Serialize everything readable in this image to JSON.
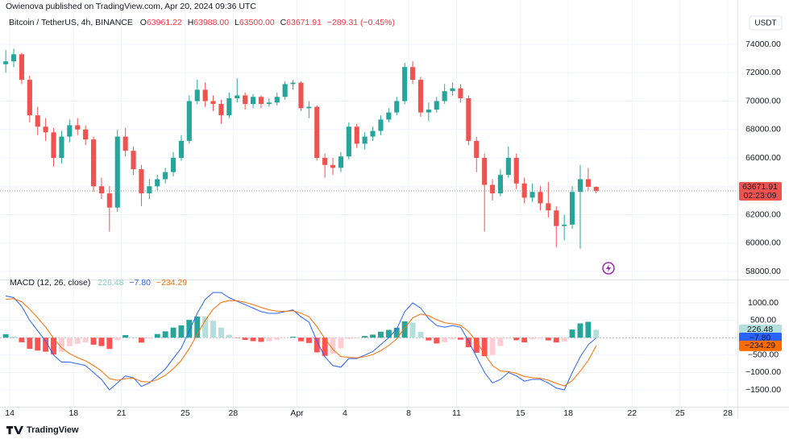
{
  "header": {
    "published": "Owienova published on TradingView.com, Apr 20, 2024 09:36 UTC",
    "symbol": "Bitcoin / TetherUS, 4h, BINANCE",
    "ohlc": [
      {
        "label": "O",
        "value": "63961.22"
      },
      {
        "label": "H",
        "value": "63988.00"
      },
      {
        "label": "L",
        "value": "63500.00"
      },
      {
        "label": "C",
        "value": "63671.91"
      }
    ],
    "change": "−289.31 (−0.45%)",
    "currency": "USDT"
  },
  "footer": {
    "brand": "TradingView"
  },
  "chart_data": [
    {
      "type": "candlestick",
      "up_color": "#26a69a",
      "down_color": "#ef5350",
      "countdown": "02:23:09",
      "grid": true,
      "x": [
        13.75,
        14.25,
        14.75,
        15.25,
        15.75,
        16.25,
        16.75,
        17.25,
        17.75,
        18.25,
        18.75,
        19.25,
        19.75,
        20.25,
        20.75,
        21.25,
        21.75,
        22.25,
        22.75,
        23.25,
        23.75,
        24.25,
        24.75,
        25.25,
        25.75,
        26.25,
        26.75,
        27.25,
        27.75,
        28.25,
        28.75,
        29.25,
        29.75,
        30.25,
        30.75,
        31.25,
        31.75,
        32.25,
        32.75,
        33.25,
        33.75,
        34.25,
        34.75,
        35.25,
        35.75,
        36.25,
        36.75,
        37.25,
        37.75,
        38.25,
        38.75,
        39.25,
        39.75,
        40.25,
        40.75,
        41.25,
        41.75,
        42.25,
        42.75,
        43.25,
        43.75,
        44.25,
        44.75,
        45.25,
        45.75,
        46.25,
        46.75,
        47.25,
        47.75,
        48.25,
        48.75,
        49.25,
        49.75,
        50.25,
        50.75
      ],
      "ohlc": [
        [
          72600,
          73600,
          72000,
          72800
        ],
        [
          72800,
          73700,
          72400,
          73300
        ],
        [
          73300,
          73400,
          71200,
          71500
        ],
        [
          71500,
          71800,
          68500,
          69000
        ],
        [
          69000,
          69600,
          67600,
          68200
        ],
        [
          68200,
          68800,
          67200,
          67800
        ],
        [
          67800,
          68100,
          65400,
          66000
        ],
        [
          66000,
          67900,
          65600,
          67500
        ],
        [
          67500,
          68700,
          67100,
          68300
        ],
        [
          68300,
          68800,
          67600,
          68000
        ],
        [
          68000,
          68300,
          66900,
          67300
        ],
        [
          67300,
          67500,
          63600,
          64000
        ],
        [
          64000,
          64600,
          63100,
          63500
        ],
        [
          63500,
          64000,
          60800,
          62500
        ],
        [
          62500,
          68000,
          62200,
          67500
        ],
        [
          67500,
          68100,
          66100,
          66500
        ],
        [
          66500,
          66800,
          64800,
          65200
        ],
        [
          65200,
          65500,
          62600,
          63500
        ],
        [
          63500,
          64500,
          63100,
          64000
        ],
        [
          64000,
          64800,
          63700,
          64500
        ],
        [
          64500,
          65300,
          64200,
          65000
        ],
        [
          65000,
          66400,
          64700,
          66000
        ],
        [
          66000,
          67600,
          65800,
          67200
        ],
        [
          67200,
          70400,
          67000,
          70000
        ],
        [
          70000,
          71500,
          69800,
          70800
        ],
        [
          70800,
          71300,
          69600,
          70000
        ],
        [
          70000,
          70400,
          69300,
          69800
        ],
        [
          69800,
          70100,
          68400,
          69000
        ],
        [
          69000,
          70600,
          68800,
          70200
        ],
        [
          70200,
          71600,
          69900,
          70400
        ],
        [
          70400,
          70600,
          69400,
          69800
        ],
        [
          69800,
          70500,
          69500,
          70300
        ],
        [
          70300,
          70400,
          69500,
          69800
        ],
        [
          69800,
          70200,
          69600,
          69900
        ],
        [
          69900,
          70600,
          69700,
          70300
        ],
        [
          70300,
          71400,
          70100,
          71200
        ],
        [
          71200,
          71500,
          70800,
          71300
        ],
        [
          71300,
          71400,
          69300,
          69500
        ],
        [
          69500,
          70000,
          68800,
          69600
        ],
        [
          69600,
          69700,
          65800,
          66000
        ],
        [
          66000,
          66300,
          64600,
          65500
        ],
        [
          65500,
          66000,
          64800,
          65300
        ],
        [
          65300,
          66400,
          65000,
          66100
        ],
        [
          66100,
          68500,
          65900,
          68200
        ],
        [
          68200,
          68400,
          66700,
          67000
        ],
        [
          67000,
          67800,
          66600,
          67500
        ],
        [
          67500,
          68200,
          67200,
          67900
        ],
        [
          67900,
          69000,
          67600,
          68700
        ],
        [
          68700,
          69500,
          68500,
          69200
        ],
        [
          69200,
          70300,
          69000,
          70000
        ],
        [
          70000,
          72700,
          69800,
          72400
        ],
        [
          72400,
          72800,
          71200,
          71500
        ],
        [
          71500,
          71700,
          68900,
          69200
        ],
        [
          69200,
          69900,
          68600,
          69400
        ],
        [
          69400,
          70300,
          69200,
          70000
        ],
        [
          70000,
          71200,
          69800,
          70700
        ],
        [
          70700,
          71300,
          70400,
          70900
        ],
        [
          70900,
          71200,
          69900,
          70200
        ],
        [
          70200,
          70400,
          66900,
          67200
        ],
        [
          67200,
          67500,
          65000,
          66000
        ],
        [
          66000,
          66300,
          60800,
          64100
        ],
        [
          64100,
          64500,
          63000,
          63500
        ],
        [
          63500,
          65200,
          63300,
          64800
        ],
        [
          64800,
          66800,
          64600,
          66000
        ],
        [
          66000,
          66300,
          63800,
          64200
        ],
        [
          64200,
          64600,
          62800,
          63200
        ],
        [
          63200,
          64200,
          62900,
          63600
        ],
        [
          63600,
          64000,
          62300,
          62800
        ],
        [
          62800,
          64300,
          61800,
          62300
        ],
        [
          62300,
          62600,
          59700,
          61200
        ],
        [
          61200,
          62000,
          60200,
          61300
        ],
        [
          61300,
          64000,
          61000,
          63600
        ],
        [
          63600,
          65500,
          59600,
          64500
        ],
        [
          64500,
          65300,
          63700,
          63961.22
        ],
        [
          63961.22,
          63988,
          63500,
          63671.91
        ]
      ],
      "xlim": [
        13.39,
        59.6
      ],
      "xticks": [
        14,
        18,
        21,
        25,
        28,
        {
          "value": 32,
          "label": "Apr"
        },
        {
          "value": 35,
          "label": "4"
        },
        {
          "value": 39,
          "label": "8"
        },
        {
          "value": 42,
          "label": "11"
        },
        {
          "value": 46,
          "label": "15"
        },
        {
          "value": 49,
          "label": "18"
        },
        {
          "value": 53,
          "label": "22"
        },
        {
          "value": 56,
          "label": "25"
        },
        {
          "value": 59,
          "label": "28"
        }
      ],
      "ylim": [
        57545,
        76102
      ],
      "yticks": [
        {
          "value": 58000,
          "label": "58000.00"
        },
        {
          "value": 60000,
          "label": "60000.00"
        },
        {
          "value": 62000,
          "label": "62000.00"
        },
        {
          "value": 64000,
          "label": "64000.00"
        },
        {
          "value": 66000,
          "label": "66000.00"
        },
        {
          "value": 68000,
          "label": "68000.00"
        },
        {
          "value": 70000,
          "label": "70000.00"
        },
        {
          "value": 72000,
          "label": "72000.00"
        },
        {
          "value": 74000,
          "label": "74000.00"
        }
      ]
    },
    {
      "type": "macd",
      "title": "MACD (12, 26, close)",
      "grid": true,
      "ylim": [
        -1986,
        1556
      ],
      "yticks": [
        {
          "value": 1000,
          "label": "1000.00"
        },
        {
          "value": 500,
          "label": "500.00"
        },
        {
          "value": -500,
          "label": "−500.00"
        },
        {
          "value": -1000,
          "label": "−1000.00"
        },
        {
          "value": -1500,
          "label": "−1500.00"
        }
      ],
      "series": [
        {
          "colors": [
            "#26a69a",
            "#b2dfdb",
            "#ffcdd2",
            "#ff5252"
          ],
          "last_label": "226.48",
          "values": [
            100,
            30,
            -132,
            -319,
            -371,
            -403,
            -482,
            -409,
            -245,
            -177,
            -136,
            -202,
            -241,
            -325,
            -75,
            75,
            15,
            -141,
            -25,
            105,
            183,
            290,
            354,
            512,
            607,
            604,
            482,
            289,
            83,
            -10,
            -66,
            -100,
            -120,
            -102,
            -61,
            -7,
            26,
            -104,
            -152,
            -421,
            -523,
            -464,
            -308,
            -35,
            -21,
            47,
            88,
            173,
            224,
            284,
            470,
            432,
            169,
            -79,
            -167,
            -130,
            -48,
            -59,
            -275,
            -435,
            -531,
            -499,
            -239,
            -23,
            -74,
            -134,
            -50,
            -30,
            -78,
            -137,
            -112,
            233,
            410,
            456,
            226.48
          ]
        },
        {
          "color": "#2962ff",
          "last_label": "−7.80",
          "values": [
            1200,
            1150,
            900,
            500,
            200,
            -100,
            -500,
            -700,
            -700,
            -750,
            -800,
            -1000,
            -1200,
            -1500,
            -1300,
            -1100,
            -1150,
            -1400,
            -1300,
            -1100,
            -900,
            -600,
            -300,
            200,
            700,
            1100,
            1300,
            1300,
            1150,
            1050,
            950,
            850,
            750,
            700,
            700,
            750,
            800,
            600,
            450,
            -100,
            -550,
            -800,
            -850,
            -600,
            -600,
            -500,
            -400,
            -200,
            0,
            250,
            750,
            1000,
            850,
            550,
            350,
            300,
            350,
            300,
            -100,
            -550,
            -1000,
            -1300,
            -1200,
            -1000,
            -1100,
            -1250,
            -1200,
            -1200,
            -1300,
            -1450,
            -1500,
            -1000,
            -550,
            -200,
            -7.8
          ]
        },
        {
          "color": "#ff6d00",
          "last_label": "−234.29",
          "values": [
            1100,
            1120,
            1032,
            819,
            571,
            303,
            -18,
            -291,
            -455,
            -573,
            -664,
            -798,
            -959,
            -1175,
            -1225,
            -1175,
            -1165,
            -1259,
            -1275,
            -1205,
            -1083,
            -890,
            -654,
            -312,
            93,
            496,
            818,
            1011,
            1067,
            1060,
            1016,
            950,
            870,
            802,
            761,
            757,
            774,
            704,
            602,
            321,
            -27,
            -336,
            -542,
            -565,
            -579,
            -547,
            -488,
            -373,
            -224,
            -34,
            280,
            568,
            681,
            629,
            517,
            430,
            398,
            359,
            175,
            -115,
            -469,
            -801,
            -961,
            -977,
            -1026,
            -1116,
            -1150,
            -1170,
            -1222,
            -1313,
            -1388,
            -1233,
            -960,
            -656,
            -234.29
          ]
        }
      ]
    }
  ]
}
